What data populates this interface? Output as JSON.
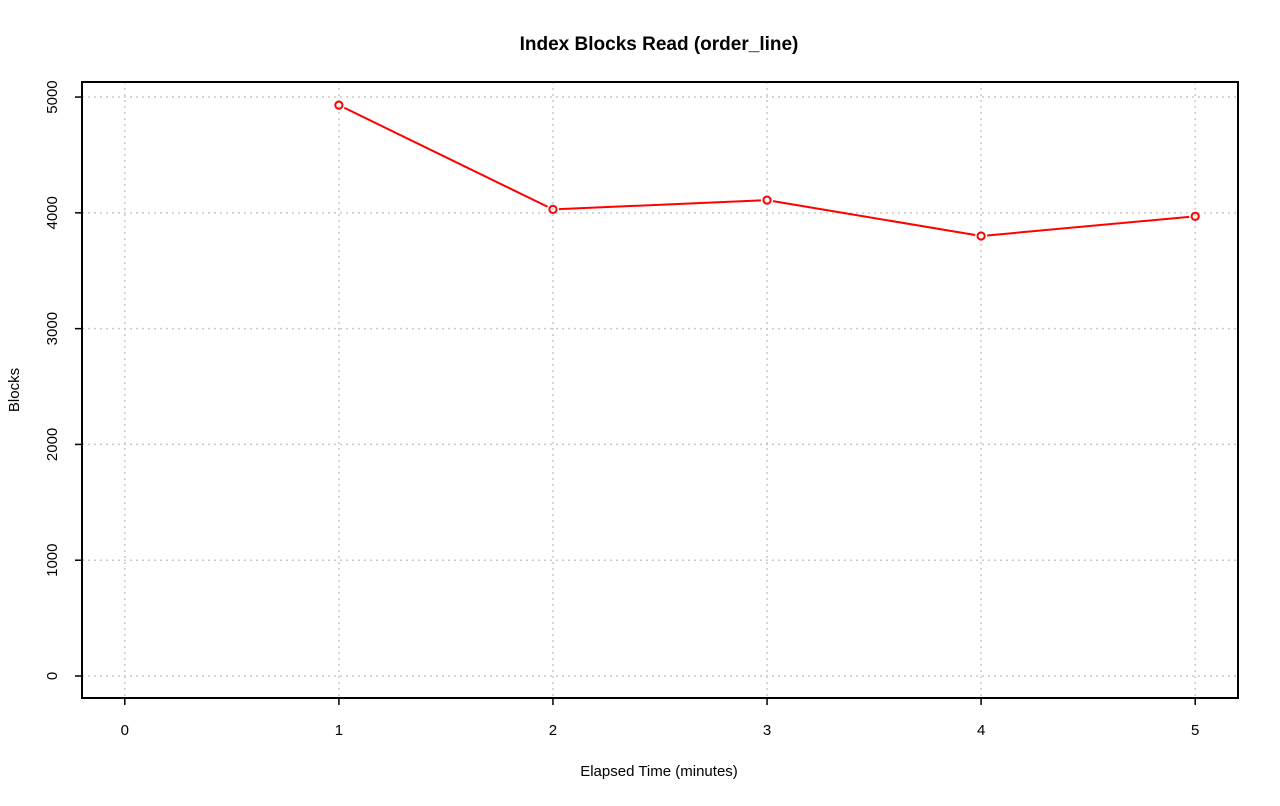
{
  "chart_data": {
    "type": "line",
    "title": "Index Blocks Read (order_line)",
    "xlabel": "Elapsed Time (minutes)",
    "ylabel": "Blocks",
    "xlim": [
      -0.2,
      5.2
    ],
    "ylim": [
      -190,
      5130
    ],
    "x_ticks": [
      0,
      1,
      2,
      3,
      4,
      5
    ],
    "y_ticks": [
      0,
      1000,
      2000,
      3000,
      4000,
      5000
    ],
    "grid": true,
    "series": [
      {
        "x": [
          1,
          2,
          3,
          4,
          5
        ],
        "values": [
          4930,
          4030,
          4110,
          3800,
          3970
        ],
        "color": "#ff0000"
      }
    ]
  }
}
